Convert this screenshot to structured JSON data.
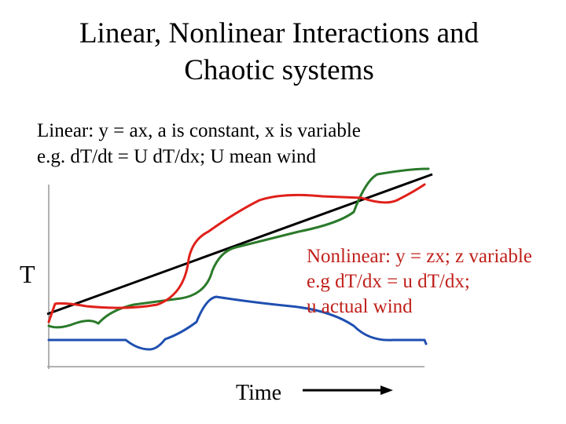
{
  "title": {
    "lines": [
      "Linear, Nonlinear Interactions and",
      "Chaotic systems"
    ]
  },
  "linear_note": {
    "lines": [
      "Linear: y = ax, a is constant, x is variable",
      "e.g. dT/dt = U dT/dx; U mean wind"
    ]
  },
  "nonlinear_note": {
    "lines": [
      "Nonlinear: y = zx; z variable",
      "e.g dT/dx = u dT/dx;",
      "u actual wind"
    ]
  },
  "axes": {
    "y_label": "T",
    "x_label": "Time"
  }
}
